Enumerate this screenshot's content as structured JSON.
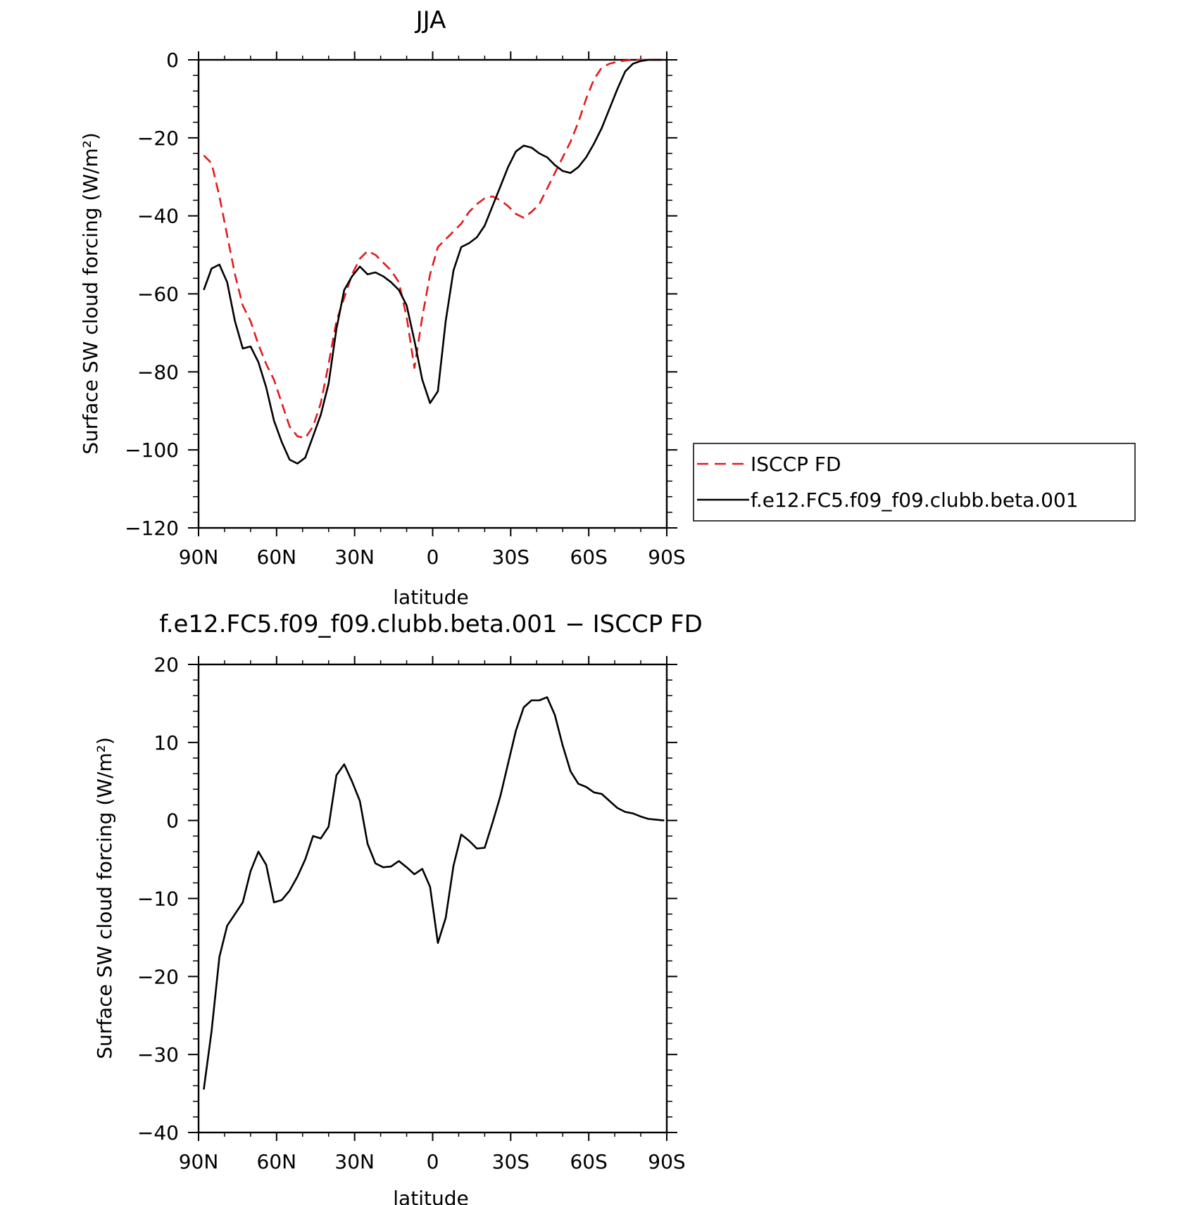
{
  "chart_data": [
    {
      "type": "line",
      "title": "JJA",
      "xlabel": "latitude",
      "ylabel": "Surface SW cloud forcing (W/m²)",
      "xlim": [
        90,
        -90
      ],
      "ylim": [
        -120,
        0
      ],
      "x_ticks": [
        90,
        60,
        30,
        0,
        -30,
        -60,
        -90
      ],
      "x_tick_labels": [
        "90N",
        "60N",
        "30N",
        "0",
        "30S",
        "60S",
        "90S"
      ],
      "y_ticks": [
        0,
        -20,
        -40,
        -60,
        -80,
        -100,
        -120
      ],
      "y_tick_labels": [
        "0",
        "−20",
        "−40",
        "−60",
        "−80",
        "−100",
        "−120"
      ],
      "legend": "right",
      "series": [
        {
          "name": "ISCCP FD",
          "color": "#e31a1c",
          "style": "dashed",
          "points": [
            [
              88,
              -24.5
            ],
            [
              85,
              -26.5
            ],
            [
              82,
              -35
            ],
            [
              79,
              -45
            ],
            [
              76,
              -55
            ],
            [
              73,
              -63
            ],
            [
              70,
              -67
            ],
            [
              67,
              -73
            ],
            [
              64,
              -78
            ],
            [
              61,
              -82
            ],
            [
              58,
              -88
            ],
            [
              55,
              -94
            ],
            [
              52,
              -96.5
            ],
            [
              49,
              -97
            ],
            [
              46,
              -94
            ],
            [
              43,
              -88
            ],
            [
              40,
              -78
            ],
            [
              37,
              -67
            ],
            [
              34,
              -61
            ],
            [
              31,
              -55
            ],
            [
              28,
              -51
            ],
            [
              25,
              -49
            ],
            [
              22,
              -50
            ],
            [
              19,
              -52
            ],
            [
              16,
              -54
            ],
            [
              13,
              -57
            ],
            [
              10,
              -66
            ],
            [
              7,
              -79
            ],
            [
              4,
              -66
            ],
            [
              1,
              -55
            ],
            [
              -2,
              -48
            ],
            [
              -5,
              -46
            ],
            [
              -8,
              -44
            ],
            [
              -11,
              -42
            ],
            [
              -14,
              -39
            ],
            [
              -17,
              -37
            ],
            [
              -20,
              -35.5
            ],
            [
              -23,
              -35
            ],
            [
              -26,
              -36
            ],
            [
              -29,
              -37.5
            ],
            [
              -32,
              -39.5
            ],
            [
              -35,
              -40.5
            ],
            [
              -38,
              -39
            ],
            [
              -41,
              -37
            ],
            [
              -44,
              -33
            ],
            [
              -47,
              -29
            ],
            [
              -50,
              -25
            ],
            [
              -53,
              -21
            ],
            [
              -56,
              -16
            ],
            [
              -59,
              -10
            ],
            [
              -62,
              -5
            ],
            [
              -65,
              -2
            ],
            [
              -68,
              -1
            ],
            [
              -71,
              -0.5
            ],
            [
              -74,
              -0.2
            ],
            [
              -77,
              0
            ],
            [
              -80,
              0
            ],
            [
              -85,
              0
            ],
            [
              -88,
              0
            ]
          ]
        },
        {
          "name": "f.e12.FC5.f09_f09.clubb.beta.001",
          "color": "#000000",
          "style": "solid",
          "points": [
            [
              88,
              -59
            ],
            [
              85,
              -53.5
            ],
            [
              82,
              -52.5
            ],
            [
              79,
              -57
            ],
            [
              76,
              -67
            ],
            [
              73,
              -74
            ],
            [
              70,
              -73.5
            ],
            [
              67,
              -77.5
            ],
            [
              64,
              -84
            ],
            [
              61,
              -92.5
            ],
            [
              58,
              -98
            ],
            [
              55,
              -102.5
            ],
            [
              52,
              -103.5
            ],
            [
              49,
              -102
            ],
            [
              46,
              -96.5
            ],
            [
              43,
              -91
            ],
            [
              40,
              -83
            ],
            [
              37,
              -69
            ],
            [
              34,
              -59
            ],
            [
              31,
              -55.5
            ],
            [
              28,
              -53
            ],
            [
              25,
              -55
            ],
            [
              22,
              -54.5
            ],
            [
              19,
              -55.5
            ],
            [
              16,
              -57
            ],
            [
              13,
              -59
            ],
            [
              10,
              -63
            ],
            [
              7,
              -72
            ],
            [
              4,
              -82
            ],
            [
              1,
              -88
            ],
            [
              -2,
              -85
            ],
            [
              -5,
              -67
            ],
            [
              -8,
              -54
            ],
            [
              -11,
              -48
            ],
            [
              -14,
              -47
            ],
            [
              -17,
              -45.5
            ],
            [
              -20,
              -42.5
            ],
            [
              -23,
              -37.5
            ],
            [
              -26,
              -32.5
            ],
            [
              -29,
              -27.5
            ],
            [
              -32,
              -23.5
            ],
            [
              -35,
              -22
            ],
            [
              -38,
              -22.5
            ],
            [
              -41,
              -24
            ],
            [
              -44,
              -25
            ],
            [
              -47,
              -27
            ],
            [
              -50,
              -28.5
            ],
            [
              -53,
              -29
            ],
            [
              -56,
              -27.5
            ],
            [
              -59,
              -25
            ],
            [
              -62,
              -21.5
            ],
            [
              -65,
              -17.5
            ],
            [
              -68,
              -12.5
            ],
            [
              -71,
              -7.5
            ],
            [
              -74,
              -3
            ],
            [
              -77,
              -1
            ],
            [
              -80,
              -0.3
            ],
            [
              -83,
              0
            ],
            [
              -86,
              0
            ],
            [
              -88,
              0
            ]
          ]
        }
      ]
    },
    {
      "type": "line",
      "title": "f.e12.FC5.f09_f09.clubb.beta.001 − ISCCP FD",
      "xlabel": "latitude",
      "ylabel": "Surface SW cloud forcing (W/m²)",
      "xlim": [
        90,
        -90
      ],
      "ylim": [
        -40,
        20
      ],
      "x_ticks": [
        90,
        60,
        30,
        0,
        -30,
        -60,
        -90
      ],
      "x_tick_labels": [
        "90N",
        "60N",
        "30N",
        "0",
        "30S",
        "60S",
        "90S"
      ],
      "y_ticks": [
        20,
        10,
        0,
        -10,
        -20,
        -30,
        -40
      ],
      "y_tick_labels": [
        "20",
        "10",
        "0",
        "−10",
        "−20",
        "−30",
        "−40"
      ],
      "series": [
        {
          "color": "#000000",
          "style": "solid",
          "points": [
            [
              88,
              -34.5
            ],
            [
              85,
              -27
            ],
            [
              82,
              -17.5
            ],
            [
              79,
              -13.5
            ],
            [
              76,
              -12
            ],
            [
              73,
              -10.5
            ],
            [
              70,
              -6.5
            ],
            [
              67,
              -4
            ],
            [
              64,
              -5.7
            ],
            [
              61,
              -10.5
            ],
            [
              58,
              -10.2
            ],
            [
              55,
              -9
            ],
            [
              52,
              -7.2
            ],
            [
              49,
              -5
            ],
            [
              46,
              -2
            ],
            [
              43,
              -2.3
            ],
            [
              40,
              -0.8
            ],
            [
              37,
              5.8
            ],
            [
              34,
              7.2
            ],
            [
              31,
              5
            ],
            [
              28,
              2.5
            ],
            [
              25,
              -3
            ],
            [
              22,
              -5.5
            ],
            [
              19,
              -6
            ],
            [
              16,
              -5.9
            ],
            [
              13,
              -5.2
            ],
            [
              10,
              -6
            ],
            [
              7,
              -6.9
            ],
            [
              4,
              -6.2
            ],
            [
              1,
              -8.5
            ],
            [
              -2,
              -15.7
            ],
            [
              -5,
              -12.5
            ],
            [
              -8,
              -5.8
            ],
            [
              -11,
              -1.8
            ],
            [
              -14,
              -2.6
            ],
            [
              -17,
              -3.6
            ],
            [
              -20,
              -3.5
            ],
            [
              -23,
              -0.3
            ],
            [
              -26,
              3.1
            ],
            [
              -29,
              7.3
            ],
            [
              -32,
              11.5
            ],
            [
              -35,
              14.5
            ],
            [
              -38,
              15.4
            ],
            [
              -41,
              15.4
            ],
            [
              -44,
              15.8
            ],
            [
              -47,
              13.5
            ],
            [
              -50,
              9.6
            ],
            [
              -53,
              6.3
            ],
            [
              -56,
              4.7
            ],
            [
              -59,
              4.3
            ],
            [
              -62,
              3.6
            ],
            [
              -65,
              3.4
            ],
            [
              -68,
              2.5
            ],
            [
              -71,
              1.6
            ],
            [
              -74,
              1.1
            ],
            [
              -77,
              0.9
            ],
            [
              -80,
              0.5
            ],
            [
              -83,
              0.2
            ],
            [
              -86,
              0.1
            ],
            [
              -89,
              0
            ]
          ]
        }
      ]
    }
  ]
}
